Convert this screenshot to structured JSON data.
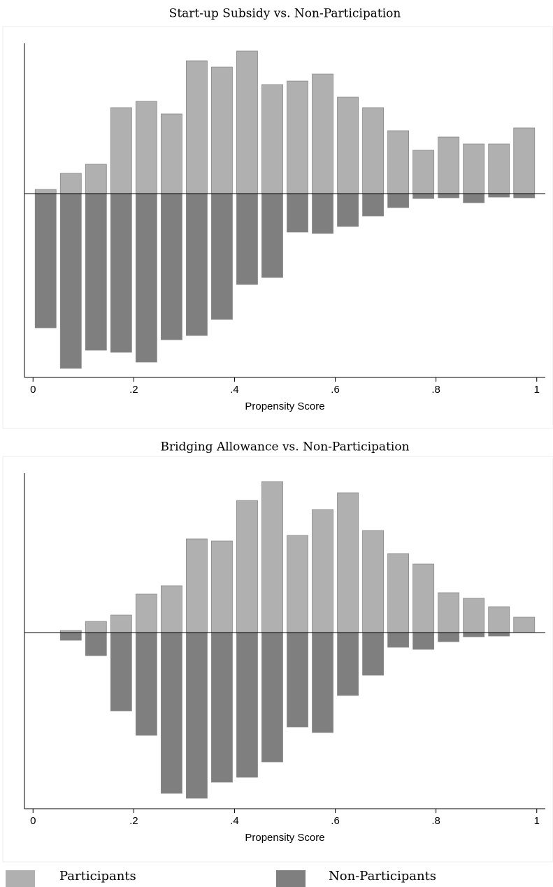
{
  "chart_data": [
    {
      "type": "mirror-histogram",
      "title": "Start-up Subsidy vs. Non-Participation",
      "x_label": "Propensity Score",
      "bins": [
        0,
        0.05,
        0.1,
        0.15,
        0.2,
        0.25,
        0.3,
        0.35,
        0.4,
        0.45,
        0.5,
        0.55,
        0.6,
        0.65,
        0.7,
        0.75,
        0.8,
        0.85,
        0.9,
        0.95,
        1
      ],
      "xlim": [
        -0.017,
        1.017
      ],
      "xticks": [
        0,
        {
          "value": 0.2,
          "label": ".2"
        },
        {
          "value": 0.4,
          "label": ".4"
        },
        {
          "value": 0.6,
          "label": ".6"
        },
        {
          "value": 0.8,
          "label": ".8"
        },
        1
      ],
      "ylim": [
        -2.63,
        2.15
      ],
      "series": [
        {
          "name": "Participants",
          "color": "#b0b0b0",
          "values": [
            0.06,
            0.29,
            0.42,
            1.23,
            1.32,
            1.14,
            1.9,
            1.81,
            2.04,
            1.56,
            1.61,
            1.71,
            1.38,
            1.23,
            0.9,
            0.62,
            0.81,
            0.71,
            0.71,
            0.94
          ]
        },
        {
          "name": "Non-Participants",
          "color": "#7f7f7f",
          "values": [
            -1.92,
            -2.5,
            -2.24,
            -2.27,
            -2.41,
            -2.09,
            -2.03,
            -1.8,
            -1.3,
            -1.2,
            -0.55,
            -0.57,
            -0.47,
            -0.32,
            -0.2,
            -0.07,
            -0.06,
            -0.13,
            -0.05,
            -0.06
          ]
        }
      ]
    },
    {
      "type": "mirror-histogram",
      "title": "Bridging Allowance vs. Non-Participation",
      "x_label": "Propensity Score",
      "bins": [
        0,
        0.05,
        0.1,
        0.15,
        0.2,
        0.25,
        0.3,
        0.35,
        0.4,
        0.45,
        0.5,
        0.55,
        0.6,
        0.65,
        0.7,
        0.75,
        0.8,
        0.85,
        0.9,
        0.95,
        1
      ],
      "xlim": [
        -0.017,
        1.017
      ],
      "xticks": [
        0,
        {
          "value": 0.2,
          "label": ".2"
        },
        {
          "value": 0.4,
          "label": ".4"
        },
        {
          "value": 0.6,
          "label": ".6"
        },
        {
          "value": 0.8,
          "label": ".8"
        },
        1
      ],
      "ylim": [
        -2.52,
        2.28
      ],
      "series": [
        {
          "color": "#b0b0b0",
          "values": [
            0,
            0.03,
            0.16,
            0.25,
            0.55,
            0.67,
            1.34,
            1.31,
            1.89,
            2.16,
            1.39,
            1.76,
            2.0,
            1.46,
            1.13,
            0.98,
            0.57,
            0.49,
            0.37,
            0.22
          ]
        },
        {
          "color": "#7f7f7f",
          "values": [
            0,
            -0.11,
            -0.33,
            -1.12,
            -1.47,
            -2.3,
            -2.37,
            -2.14,
            -2.07,
            -1.85,
            -1.35,
            -1.43,
            -0.9,
            -0.61,
            -0.21,
            -0.24,
            -0.13,
            -0.06,
            -0.05,
            0
          ]
        }
      ]
    }
  ]
}
